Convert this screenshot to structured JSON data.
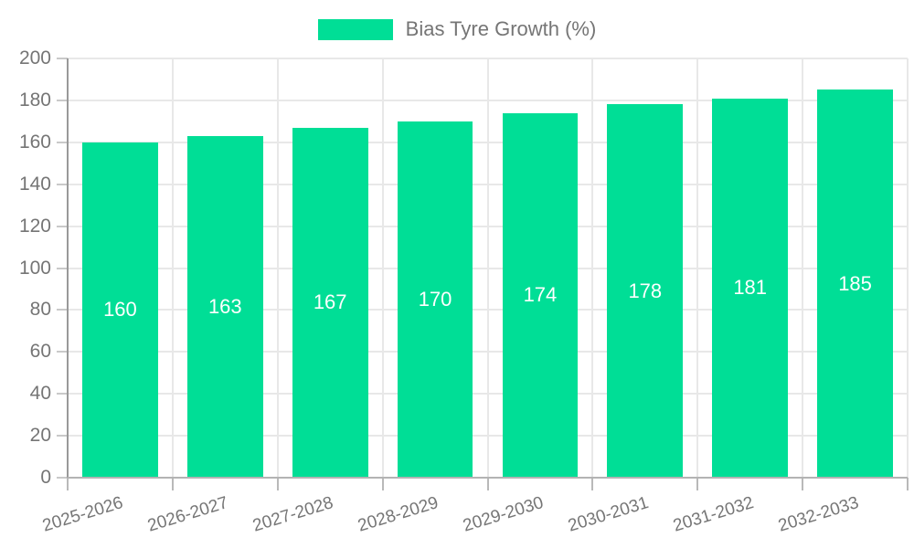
{
  "legend": {
    "items": [
      {
        "label": "Bias Tyre Growth (%)",
        "color": "#00DE96"
      }
    ]
  },
  "chart_data": {
    "type": "bar",
    "title": "",
    "categories": [
      "2025-2026",
      "2026-2027",
      "2027-2028",
      "2028-2029",
      "2029-2030",
      "2030-2031",
      "2031-2032",
      "2032-2033"
    ],
    "series": [
      {
        "name": "Bias Tyre Growth (%)",
        "values": [
          160,
          163,
          167,
          170,
          174,
          178,
          181,
          185
        ],
        "color": "#00DE96"
      }
    ],
    "value_labels": [
      "160",
      "163",
      "167",
      "170",
      "174",
      "178",
      "181",
      "185"
    ],
    "xlabel": "",
    "ylabel": "",
    "ylim": [
      0,
      200
    ],
    "ytick_step": 20,
    "ytick_labels": [
      "0",
      "20",
      "40",
      "60",
      "80",
      "100",
      "120",
      "140",
      "160",
      "180",
      "200"
    ],
    "grid": true,
    "legend_position": "top",
    "colors": {
      "bar": "#00DE96",
      "value_label": "#ffffff",
      "axis_text": "#757575",
      "grid_line": "#e8e8e8",
      "y_axis_line": "#999999",
      "x_axis_line": "#b3b3b3",
      "background": "#ffffff"
    }
  }
}
